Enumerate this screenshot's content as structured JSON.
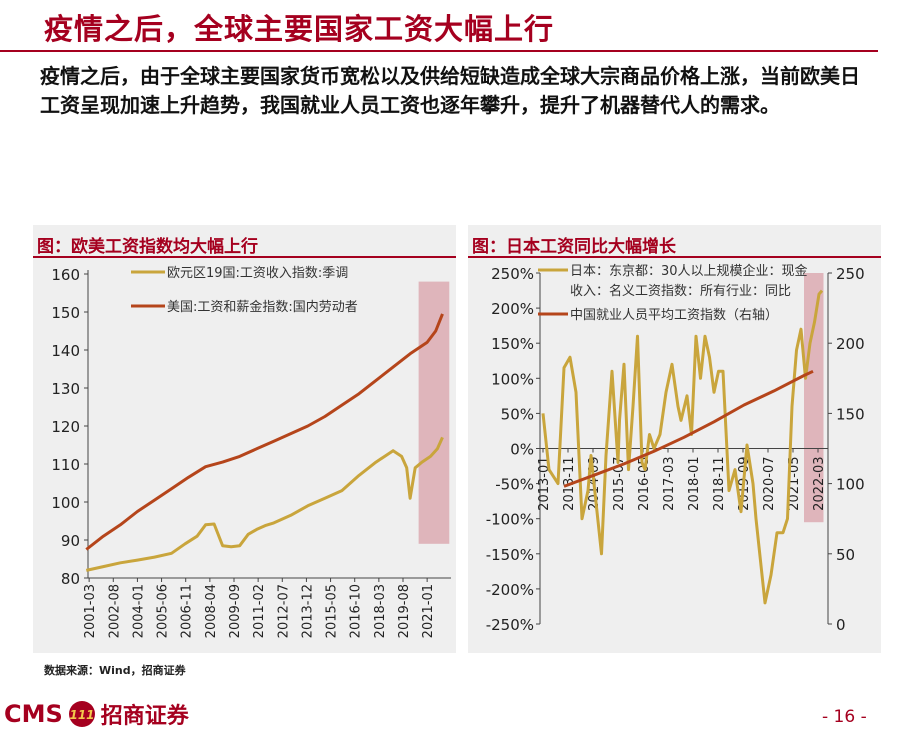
{
  "slide": {
    "title": "疫情之后，全球主要国家工资大幅上行",
    "intro": "疫情之后，由于全球主要国家货币宽松以及供给短缺造成全球大宗商品价格上涨，当前欧美日工资呈现加速上升趋势，我国就业人员工资也逐年攀升，提升了机器替代人的需求。",
    "source": "数据来源：Wind，招商证券",
    "page_number": "- 16 -",
    "logo_text": "CMS",
    "logo_mark": "111",
    "logo_name": "招商证券",
    "accent_color": "#a5001f",
    "panel_bg": "#efefef",
    "highlight_color": "#dcaab1"
  },
  "chart_data": [
    {
      "type": "line",
      "title": "图：欧美工资指数均大幅上行",
      "ylim": [
        80,
        160
      ],
      "yticks": [
        "160",
        "150",
        "140",
        "130",
        "120",
        "110",
        "100",
        "90",
        "80"
      ],
      "xticks": [
        "2001-03",
        "2002-08",
        "2004-01",
        "2005-06",
        "2006-11",
        "2008-04",
        "2009-09",
        "2011-02",
        "2012-07",
        "2013-12",
        "2015-05",
        "2016-10",
        "2018-03",
        "2019-08",
        "2021-01"
      ],
      "highlight_x": [
        2020.5,
        2022.3
      ],
      "series": [
        {
          "name": "欧元区19国:工资收入指数:季调",
          "color": "#c9a53c",
          "x": [
            2001.0,
            2002.0,
            2003.0,
            2004.0,
            2005.0,
            2006.0,
            2006.8,
            2007.5,
            2008.0,
            2008.5,
            2009.0,
            2009.5,
            2010.0,
            2010.5,
            2011.0,
            2011.5,
            2012.0,
            2013.0,
            2014.0,
            2015.0,
            2016.0,
            2017.0,
            2018.0,
            2019.0,
            2019.5,
            2019.8,
            2020.0,
            2020.3,
            2020.7,
            2021.2,
            2021.6,
            2021.9
          ],
          "values": [
            82,
            83,
            84,
            84.7,
            85.5,
            86.5,
            89,
            91,
            94,
            94.2,
            88.5,
            88.2,
            88.5,
            91.5,
            92.8,
            93.8,
            94.5,
            96.5,
            99,
            101,
            103,
            107,
            110.5,
            113.5,
            112,
            109,
            101,
            109,
            110.5,
            112,
            114,
            117
          ]
        },
        {
          "name": "美国:工资和薪金指数:国内劳动者",
          "color": "#b5451b",
          "x": [
            2001.0,
            2002.0,
            2003.0,
            2004.0,
            2005.0,
            2006.0,
            2007.0,
            2008.0,
            2009.0,
            2010.0,
            2011.0,
            2012.0,
            2013.0,
            2014.0,
            2015.0,
            2016.0,
            2017.0,
            2018.0,
            2019.0,
            2020.0,
            2021.0,
            2021.5,
            2021.9
          ],
          "values": [
            87.5,
            91,
            94,
            97.5,
            100.5,
            103.5,
            106.5,
            109.3,
            110.5,
            112,
            114,
            116,
            118,
            120,
            122.5,
            125.5,
            128.5,
            132,
            135.5,
            139,
            142,
            145,
            149.5
          ]
        }
      ]
    },
    {
      "type": "line",
      "title": "图：日本工资同比大幅增长",
      "ylim_left": [
        -250,
        250
      ],
      "ylim_right": [
        0,
        250
      ],
      "yticks_left": [
        "250%",
        "200%",
        "150%",
        "100%",
        "50%",
        "0%",
        "-50%",
        "-100%",
        "-150%",
        "-200%",
        "-250%"
      ],
      "yticks_right": [
        "250",
        "200",
        "150",
        "100",
        "50",
        "0"
      ],
      "xticks": [
        "2013-01",
        "2013-11",
        "2014-09",
        "2015-07",
        "2016-05",
        "2017-03",
        "2018-01",
        "2018-11",
        "2019-09",
        "2020-07",
        "2021-05",
        "2022-03"
      ],
      "highlight_x": [
        2021.7,
        2022.35
      ],
      "series": [
        {
          "name": "日本：东京都：30人以上规模企业：现金收入：名义工资指数：所有行业：同比",
          "color": "#c9a53c",
          "axis": "left",
          "x": [
            2013.0,
            2013.2,
            2013.5,
            2013.7,
            2013.9,
            2014.1,
            2014.3,
            2014.5,
            2014.6,
            2014.8,
            2014.95,
            2015.1,
            2015.3,
            2015.5,
            2015.55,
            2015.7,
            2015.85,
            2016.0,
            2016.15,
            2016.3,
            2016.4,
            2016.55,
            2016.7,
            2016.9,
            2017.1,
            2017.3,
            2017.5,
            2017.6,
            2017.8,
            2017.95,
            2018.1,
            2018.25,
            2018.4,
            2018.55,
            2018.7,
            2018.85,
            2019.0,
            2019.2,
            2019.4,
            2019.6,
            2019.8,
            2020.0,
            2020.1,
            2020.2,
            2020.4,
            2020.6,
            2020.8,
            2021.0,
            2021.15,
            2021.3,
            2021.45,
            2021.6,
            2021.75,
            2021.9,
            2022.05,
            2022.2,
            2022.3
          ],
          "values": [
            50,
            -30,
            -50,
            115,
            130,
            80,
            -100,
            -60,
            -10,
            -90,
            -150,
            -10,
            110,
            -20,
            40,
            120,
            -30,
            60,
            160,
            -20,
            -30,
            20,
            0,
            20,
            80,
            120,
            60,
            40,
            75,
            20,
            160,
            100,
            160,
            130,
            80,
            110,
            110,
            -60,
            -30,
            -90,
            5,
            -50,
            -100,
            -140,
            -220,
            -180,
            -120,
            -120,
            -100,
            60,
            140,
            170,
            100,
            150,
            180,
            220,
            225
          ]
        },
        {
          "name": "中国就业人员平均工资指数（右轴）",
          "color": "#b5451b",
          "axis": "right",
          "x": [
            2013.7,
            2014.7,
            2015.7,
            2016.7,
            2017.7,
            2018.7,
            2019.7,
            2020.7,
            2021.7,
            2022.0
          ],
          "values": [
            98,
            106,
            114,
            123,
            133,
            144,
            156,
            166,
            177,
            180
          ]
        }
      ]
    }
  ]
}
